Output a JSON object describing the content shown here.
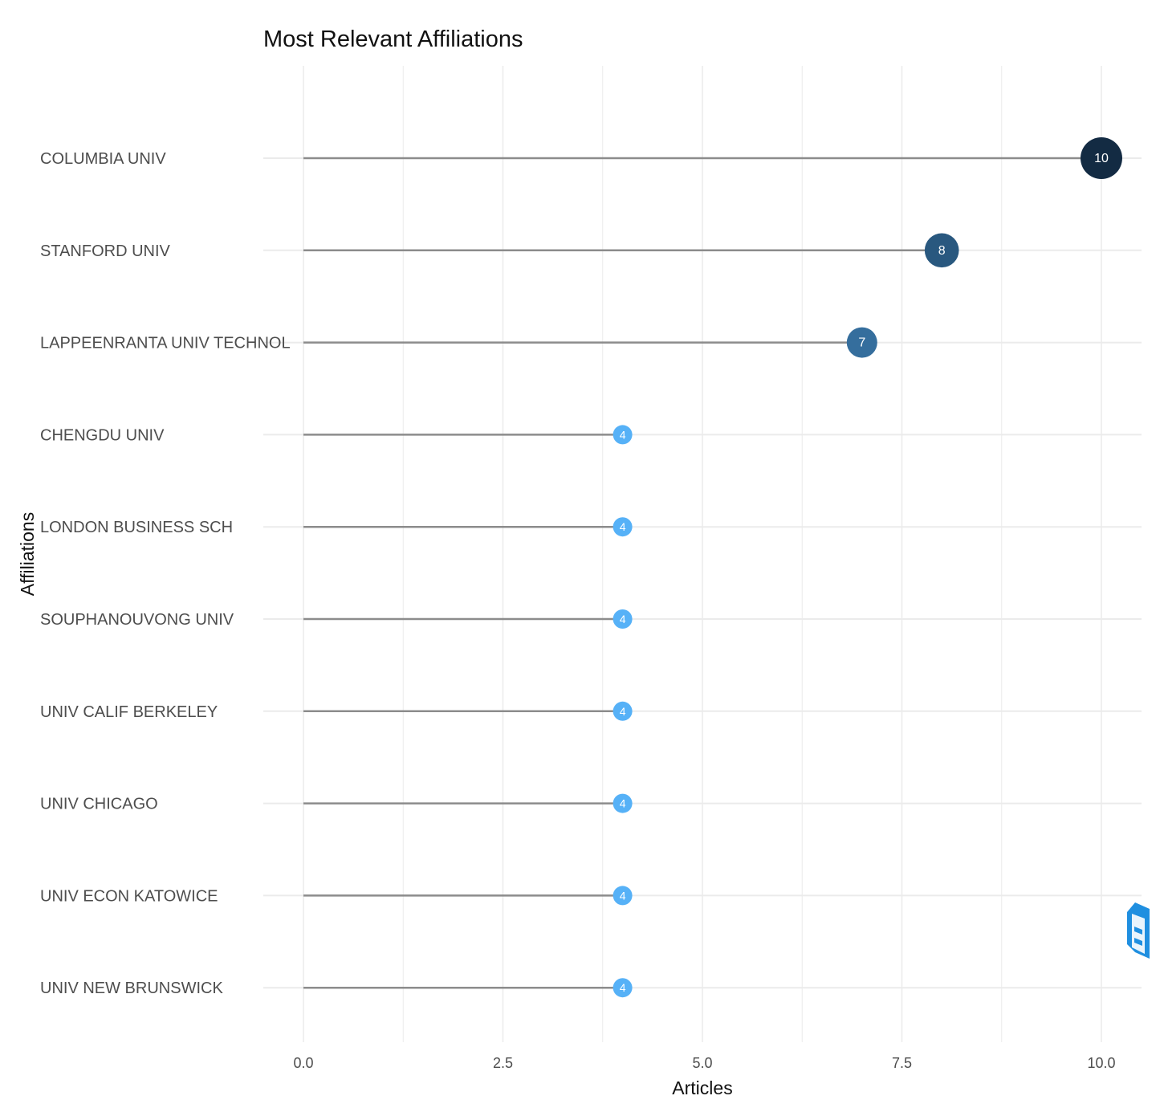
{
  "chart_data": {
    "type": "lollipop",
    "title": "Most Relevant Affiliations",
    "xlabel": "Articles",
    "ylabel": "Affiliations",
    "xlim": [
      0,
      10
    ],
    "x_ticks": [
      "0.0",
      "2.5",
      "5.0",
      "7.5",
      "10.0"
    ],
    "x_tick_values": [
      0,
      2.5,
      5,
      7.5,
      10
    ],
    "grid": true,
    "categories": [
      "COLUMBIA UNIV",
      "STANFORD UNIV",
      "LAPPEENRANTA UNIV TECHNOL",
      "CHENGDU UNIV",
      "LONDON BUSINESS SCH",
      "SOUPHANOUVONG UNIV",
      "UNIV CALIF BERKELEY",
      "UNIV CHICAGO",
      "UNIV ECON KATOWICE",
      "UNIV NEW BRUNSWICK"
    ],
    "values": [
      10,
      8,
      7,
      4,
      4,
      4,
      4,
      4,
      4,
      4
    ],
    "point_labels": [
      "10",
      "8",
      "7",
      "4",
      "4",
      "4",
      "4",
      "4",
      "4",
      "4"
    ],
    "colors": {
      "low": "#56B1F7",
      "high": "#132B43",
      "stem": "#8c8c8c",
      "grid": "#ebebeb",
      "logo": "#1f8fe0"
    }
  },
  "logo": {
    "icon": "bibliometrix-logo-icon"
  }
}
